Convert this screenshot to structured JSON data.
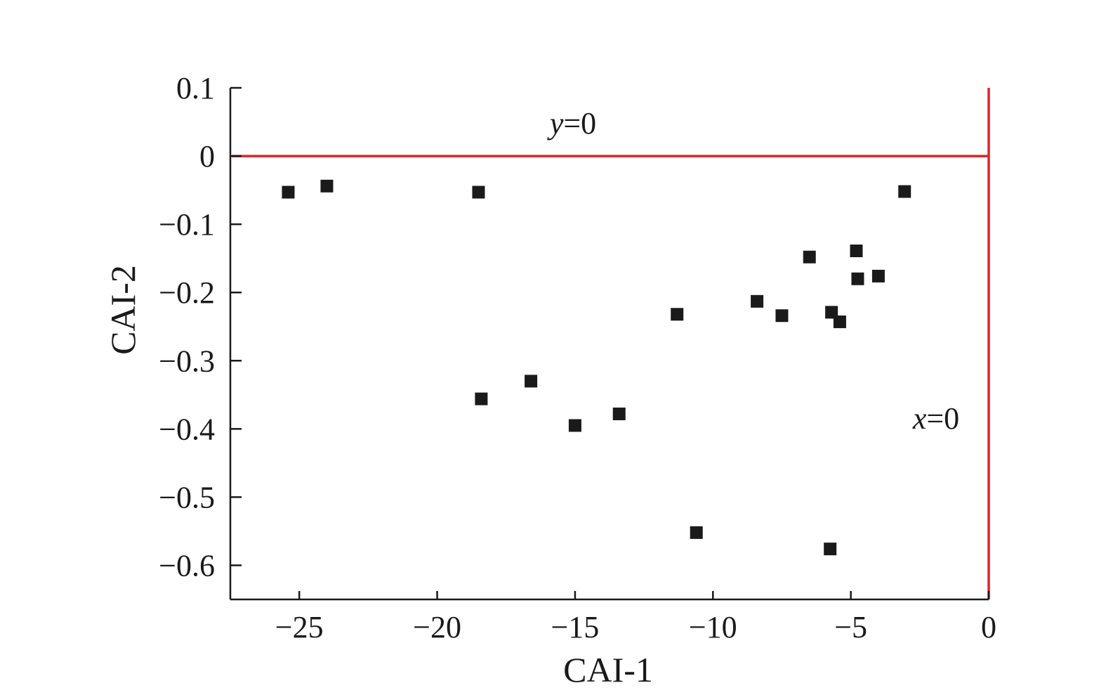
{
  "chart_data": {
    "type": "scatter",
    "xlabel": "CAI-1",
    "ylabel": "CAI-2",
    "xlim": [
      -27.5,
      0
    ],
    "ylim": [
      -0.65,
      0.1
    ],
    "x_ticks": [
      -25,
      -20,
      -15,
      -10,
      -5,
      0
    ],
    "x_tick_labels": [
      "−25",
      "−20",
      "−15",
      "−10",
      "−5",
      "0"
    ],
    "y_ticks": [
      0.1,
      0,
      -0.1,
      -0.2,
      -0.3,
      -0.4,
      -0.5,
      -0.6
    ],
    "y_tick_labels": [
      "0.1",
      "0",
      "−0.1",
      "−0.2",
      "−0.3",
      "−0.4",
      "−0.5",
      "−0.6"
    ],
    "grid": false,
    "series": [
      {
        "marker": "square",
        "color": "#1a1a1a",
        "points": [
          {
            "x": -25.4,
            "y": -0.053
          },
          {
            "x": -24.0,
            "y": -0.044
          },
          {
            "x": -18.5,
            "y": -0.053
          },
          {
            "x": -18.4,
            "y": -0.356
          },
          {
            "x": -16.6,
            "y": -0.33
          },
          {
            "x": -15.0,
            "y": -0.395
          },
          {
            "x": -13.4,
            "y": -0.378
          },
          {
            "x": -11.3,
            "y": -0.232
          },
          {
            "x": -10.6,
            "y": -0.552
          },
          {
            "x": -8.4,
            "y": -0.213
          },
          {
            "x": -7.5,
            "y": -0.234
          },
          {
            "x": -6.5,
            "y": -0.148
          },
          {
            "x": -5.7,
            "y": -0.229
          },
          {
            "x": -5.4,
            "y": -0.243
          },
          {
            "x": -5.75,
            "y": -0.576
          },
          {
            "x": -4.8,
            "y": -0.139
          },
          {
            "x": -4.75,
            "y": -0.18
          },
          {
            "x": -4.0,
            "y": -0.176
          },
          {
            "x": -3.05,
            "y": -0.052
          }
        ]
      }
    ],
    "reference_lines": [
      {
        "orientation": "horizontal",
        "value": 0,
        "color": "#d7262e",
        "label_var": "y",
        "label_rest": "=0"
      },
      {
        "orientation": "vertical",
        "value": 0,
        "color": "#d7262e",
        "label_var": "x",
        "label_rest": "=0"
      }
    ]
  }
}
